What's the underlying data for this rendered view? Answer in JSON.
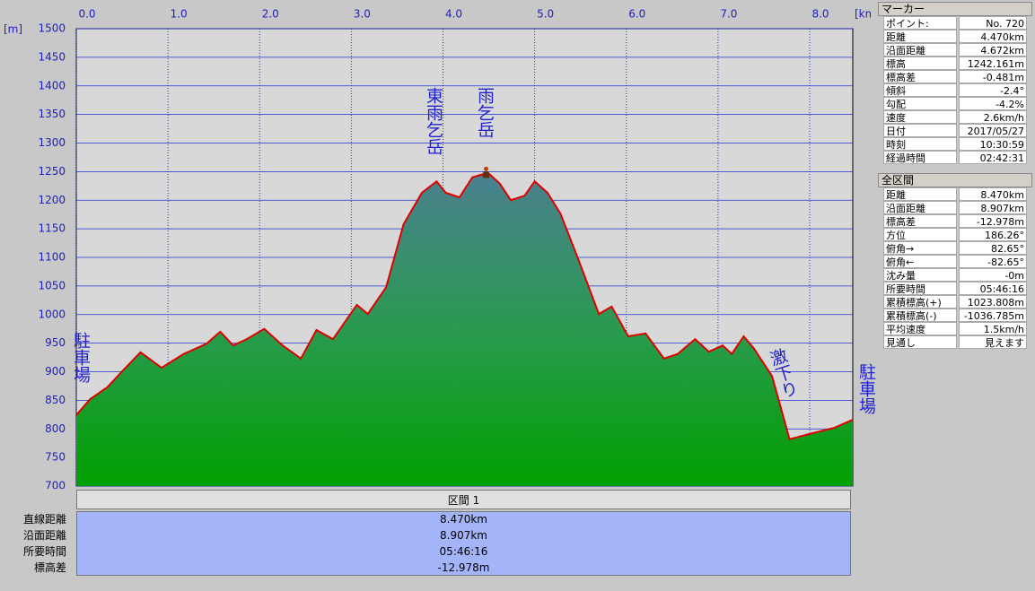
{
  "chart_data": {
    "type": "area",
    "y_unit": "[m]",
    "x_unit": "[km]",
    "xlim": [
      0,
      8.47
    ],
    "ylim": [
      700,
      1500
    ],
    "xticks": [
      {
        "value": 0,
        "label": "0.0"
      },
      {
        "value": 1,
        "label": "1.0"
      },
      {
        "value": 2,
        "label": "2.0"
      },
      {
        "value": 3,
        "label": "3.0"
      },
      {
        "value": 4,
        "label": "4.0"
      },
      {
        "value": 5,
        "label": "5.0"
      },
      {
        "value": 6,
        "label": "6.0"
      },
      {
        "value": 7,
        "label": "7.0"
      },
      {
        "value": 8,
        "label": "8.0"
      }
    ],
    "yticks": [
      700,
      750,
      800,
      850,
      900,
      950,
      1000,
      1050,
      1100,
      1150,
      1200,
      1250,
      1300,
      1350,
      1400,
      1450,
      1500
    ],
    "grid": true,
    "series": [
      {
        "color": "#e00000",
        "x": [
          0,
          0.15,
          0.34,
          0.49,
          0.7,
          0.93,
          1.17,
          1.42,
          1.57,
          1.71,
          1.86,
          2.05,
          2.25,
          2.45,
          2.62,
          2.8,
          3.06,
          3.18,
          3.38,
          3.57,
          3.77,
          3.93,
          4.03,
          4.18,
          4.32,
          4.49,
          4.62,
          4.74,
          4.89,
          5,
          5.14,
          5.28,
          5.48,
          5.7,
          5.84,
          6.02,
          6.21,
          6.41,
          6.56,
          6.75,
          6.9,
          7.05,
          7.15,
          7.28,
          7.39,
          7.59,
          7.78,
          7.97,
          8.27,
          8.47
        ],
        "values": [
          824,
          852,
          873,
          899,
          934,
          907,
          931,
          949,
          970,
          946,
          957,
          975,
          946,
          923,
          973,
          957,
          1017,
          1001,
          1048,
          1158,
          1213,
          1233,
          1213,
          1205,
          1240,
          1248,
          1229,
          1200,
          1208,
          1233,
          1213,
          1177,
          1095,
          1001,
          1014,
          962,
          967,
          923,
          931,
          957,
          935,
          946,
          931,
          962,
          941,
          892,
          782,
          790,
          802,
          816
        ]
      }
    ],
    "marker": {
      "x": 4.47,
      "y": 1242.161
    },
    "annotations": [
      "駐車場",
      "東雨乞岳",
      "雨乞岳",
      "激下り",
      "駐車場"
    ]
  },
  "marker_panel": {
    "title": "マーカー",
    "rows": [
      [
        "ポイント:",
        "No. 720"
      ],
      [
        "距離",
        "4.470km"
      ],
      [
        "沿面距離",
        "4.672km"
      ],
      [
        "標高",
        "1242.161m"
      ],
      [
        "標高差",
        "-0.481m"
      ],
      [
        "傾斜",
        "-2.4°"
      ],
      [
        "勾配",
        "-4.2%"
      ],
      [
        "速度",
        "2.6km/h"
      ],
      [
        "日付",
        "2017/05/27"
      ],
      [
        "時刻",
        "10:30:59"
      ],
      [
        "経過時間",
        "02:42:31"
      ]
    ]
  },
  "total_panel": {
    "title": "全区間",
    "rows": [
      [
        "距離",
        "8.470km"
      ],
      [
        "沿面距離",
        "8.907km"
      ],
      [
        "標高差",
        "-12.978m"
      ],
      [
        "方位",
        "186.26°"
      ],
      [
        "俯角→",
        "82.65°"
      ],
      [
        "俯角←",
        "-82.65°"
      ],
      [
        "沈み量",
        "-0m"
      ],
      [
        "所要時間",
        "05:46:16"
      ],
      [
        "累積標高(+)",
        "1023.808m"
      ],
      [
        "累積標高(-)",
        "-1036.785m"
      ],
      [
        "平均速度",
        "1.5km/h"
      ],
      [
        "見通し",
        "見えます"
      ]
    ]
  },
  "section_table": {
    "title": "区間 1",
    "rows": [
      [
        "直線距離",
        "8.470km"
      ],
      [
        "沿面距離",
        "8.907km"
      ],
      [
        "所要時間",
        "05:46:16"
      ],
      [
        "標高差",
        "-12.978m"
      ]
    ]
  }
}
